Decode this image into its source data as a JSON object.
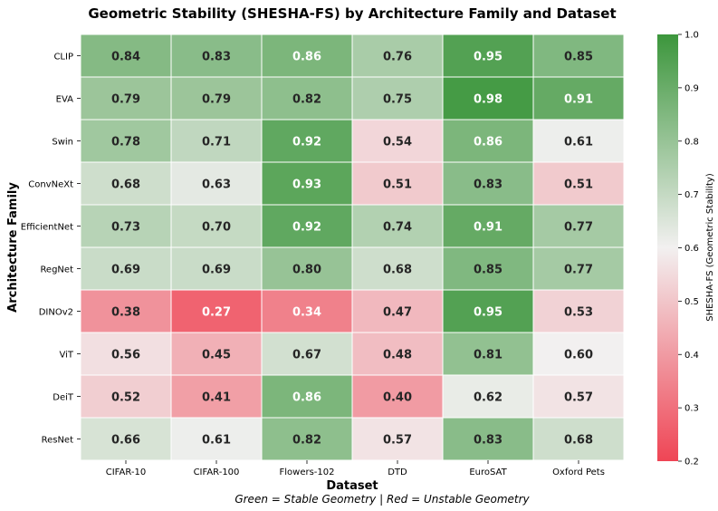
{
  "chart_data": {
    "type": "heatmap",
    "title": "Geometric Stability (SHESHA-FS) by Architecture Family and Dataset",
    "xlabel": "Dataset",
    "ylabel": "Architecture Family",
    "caption": "Green = Stable Geometry | Red = Unstable Geometry",
    "colorbar_label": "SHESHA-FS (Geometric Stability)",
    "colorbar_range": [
      0.2,
      1.0
    ],
    "colorbar_ticks": [
      "0.2",
      "0.3",
      "0.4",
      "0.5",
      "0.6",
      "0.7",
      "0.8",
      "0.9",
      "1.0"
    ],
    "columns": [
      "CIFAR-10",
      "CIFAR-100",
      "Flowers-102",
      "DTD",
      "EuroSAT",
      "Oxford Pets"
    ],
    "rows": [
      "CLIP",
      "EVA",
      "Swin",
      "ConvNeXt",
      "EfficientNet",
      "RegNet",
      "DINOv2",
      "ViT",
      "DeiT",
      "ResNet"
    ],
    "values": [
      [
        0.84,
        0.83,
        0.86,
        0.76,
        0.95,
        0.85
      ],
      [
        0.79,
        0.79,
        0.82,
        0.75,
        0.98,
        0.91
      ],
      [
        0.78,
        0.71,
        0.92,
        0.54,
        0.86,
        0.61
      ],
      [
        0.68,
        0.63,
        0.93,
        0.51,
        0.83,
        0.51
      ],
      [
        0.73,
        0.7,
        0.92,
        0.74,
        0.91,
        0.77
      ],
      [
        0.69,
        0.69,
        0.8,
        0.68,
        0.85,
        0.77
      ],
      [
        0.38,
        0.27,
        0.34,
        0.47,
        0.95,
        0.53
      ],
      [
        0.56,
        0.45,
        0.67,
        0.48,
        0.81,
        0.6
      ],
      [
        0.52,
        0.41,
        0.86,
        0.4,
        0.62,
        0.57
      ],
      [
        0.66,
        0.61,
        0.82,
        0.57,
        0.83,
        0.68
      ]
    ],
    "colors": {
      "low": "#ef4555",
      "mid": "#f2f0f0",
      "high": "#3c963c"
    }
  }
}
